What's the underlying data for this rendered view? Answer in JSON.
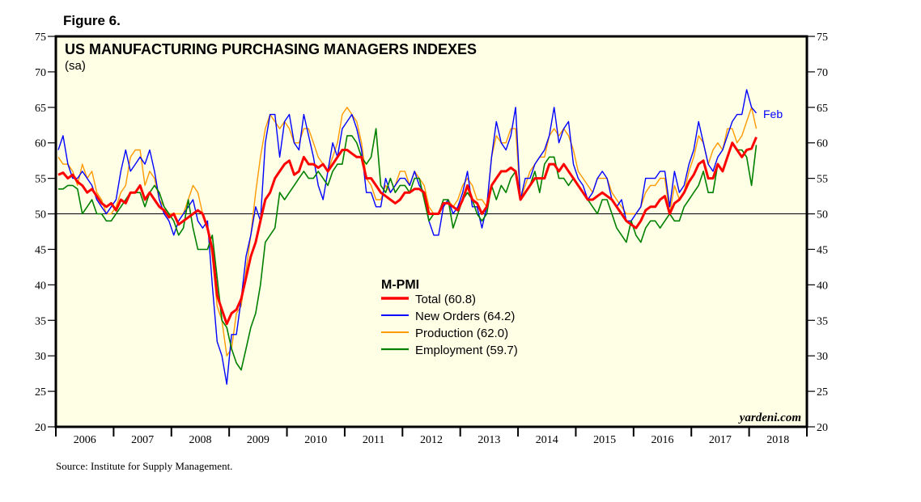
{
  "figure_label": "Figure 6.",
  "source": "Source: Institute for Supply Management.",
  "watermark": "yardeni.com",
  "chart_data": {
    "type": "line",
    "title": "US MANUFACTURING PURCHASING MANAGERS INDEXES",
    "subtitle": "(sa)",
    "legend_title": "M-PMI",
    "legend_placement": "center",
    "end_annotation": "Feb",
    "start": "2006-01",
    "end": "2018-02",
    "frequency": "monthly",
    "ylim": [
      20,
      75
    ],
    "yticks": [
      20,
      25,
      30,
      35,
      40,
      45,
      50,
      55,
      60,
      65,
      70,
      75
    ],
    "reference_line": 50,
    "xticks": [
      "2006",
      "2007",
      "2008",
      "2009",
      "2010",
      "2011",
      "2012",
      "2013",
      "2014",
      "2015",
      "2016",
      "2017",
      "2018"
    ],
    "series": [
      {
        "name": "Total (60.8)",
        "color": "#ff0000",
        "width": 3,
        "values": [
          55.5,
          55.8,
          55,
          55.5,
          54.5,
          54,
          53,
          53.5,
          52.5,
          51.5,
          51,
          51.5,
          50.5,
          52,
          51.5,
          53,
          53,
          54,
          52,
          53,
          52,
          51,
          50.5,
          49.5,
          50,
          48.5,
          49,
          49.5,
          50,
          50.5,
          50,
          48,
          45,
          38.5,
          36.5,
          34.5,
          36,
          36.5,
          38,
          41,
          44,
          46,
          49,
          52,
          53,
          55,
          56,
          57,
          57.5,
          55.5,
          56,
          58,
          57,
          57,
          56.5,
          57,
          56,
          57,
          58,
          59,
          59,
          58.5,
          58,
          58,
          55,
          55,
          54,
          53,
          52.5,
          52,
          51.5,
          52,
          53,
          53,
          53.5,
          53.5,
          53,
          50,
          50,
          50,
          51.5,
          51.5,
          51,
          50.5,
          52,
          54,
          52,
          51.5,
          50,
          51,
          54,
          55,
          56,
          56,
          56.5,
          56,
          52,
          53,
          54,
          55,
          55,
          55,
          57,
          57,
          56,
          57,
          56,
          55,
          54,
          53,
          52,
          52,
          52.5,
          53,
          52.5,
          52,
          51,
          50,
          49,
          48.5,
          48,
          49,
          50.5,
          51,
          51,
          52,
          52.5,
          50,
          51.5,
          52,
          53,
          54.5,
          55.5,
          57,
          57.5,
          55,
          55,
          57,
          56,
          58,
          60,
          59,
          58,
          59,
          59.2,
          60.8
        ]
      },
      {
        "name": "New Orders (64.2)",
        "color": "#0000ff",
        "width": 1.4,
        "values": [
          59,
          61,
          57,
          55,
          55,
          56,
          55,
          54,
          52,
          51,
          50,
          51,
          52,
          56,
          59,
          56,
          57,
          58,
          57,
          59,
          56,
          52,
          50,
          49,
          47,
          49,
          50,
          51,
          52,
          49,
          48,
          49,
          40,
          32,
          30,
          26,
          33,
          33,
          38,
          44,
          47,
          51,
          49,
          60,
          64,
          64,
          58,
          63,
          64,
          60,
          59,
          64,
          61,
          58,
          54,
          52,
          56,
          60,
          58,
          62,
          63,
          64,
          62,
          59,
          53,
          53,
          51,
          51,
          55,
          53,
          54,
          55,
          55,
          54,
          56,
          54,
          53,
          49,
          47,
          47,
          51,
          52,
          50,
          51,
          53,
          56,
          51,
          51,
          48,
          51,
          58,
          63,
          60,
          59,
          61,
          65,
          52,
          55,
          55,
          57,
          58,
          59,
          61,
          65,
          60,
          62,
          63,
          57,
          55,
          54,
          52,
          53,
          55,
          56,
          55,
          52,
          51,
          52,
          49,
          49,
          50,
          51,
          55,
          55,
          55,
          56,
          56,
          51,
          56,
          53,
          54,
          57,
          59,
          63,
          60,
          57,
          56,
          58,
          59,
          61,
          63,
          64,
          64,
          67.5,
          65,
          64.2
        ]
      },
      {
        "name": "Production (62.0)",
        "color": "#ff9900",
        "width": 1.4,
        "values": [
          58,
          57,
          57,
          56,
          54,
          57,
          55,
          56,
          53,
          52,
          50,
          50,
          51,
          53,
          54,
          58,
          59,
          59,
          54,
          56,
          55,
          52,
          51,
          50,
          50,
          50,
          50,
          52,
          54,
          53,
          50,
          48,
          44,
          37,
          35,
          30,
          31,
          36,
          37,
          42,
          47,
          53,
          58,
          62,
          64,
          63,
          62,
          63,
          62,
          60,
          60,
          62,
          62,
          60,
          58,
          57,
          56,
          58,
          60,
          64,
          65,
          64,
          63,
          60,
          55,
          54,
          52,
          52,
          54,
          53,
          54,
          56,
          56,
          54,
          56,
          55,
          54,
          51,
          50,
          50,
          51,
          52,
          51,
          52,
          54,
          55,
          54,
          52,
          52,
          51,
          58,
          61,
          60,
          60,
          62,
          62,
          52,
          54,
          56,
          57,
          58,
          58,
          61,
          62,
          61,
          62,
          61,
          59,
          56,
          55,
          54,
          53,
          55,
          55,
          55,
          53,
          52,
          51,
          50,
          50,
          50,
          51,
          53,
          54,
          54,
          55,
          55,
          50,
          54,
          52,
          53,
          56,
          58,
          61,
          60,
          57,
          59,
          60,
          59,
          62,
          62,
          60,
          61,
          63,
          65,
          62.0
        ]
      },
      {
        "name": "Employment (59.7)",
        "color": "#008000",
        "width": 1.6,
        "values": [
          53.5,
          53.5,
          54,
          54,
          53.5,
          50,
          51,
          52,
          50,
          50,
          49,
          49,
          50,
          51,
          52,
          53,
          53,
          53,
          51,
          53,
          54,
          53,
          51,
          50,
          49,
          47,
          48,
          52,
          48,
          45,
          45,
          45,
          47,
          41,
          35,
          34,
          31,
          29,
          28,
          31,
          34,
          36,
          40,
          46,
          47,
          48,
          53,
          52,
          53,
          54,
          55,
          56,
          55,
          55,
          56,
          55,
          54,
          56,
          57,
          57,
          61,
          61,
          60,
          58,
          57,
          58,
          62,
          54,
          53,
          55,
          53,
          54,
          54,
          53,
          55,
          55,
          52,
          49,
          50,
          50,
          52,
          52,
          48,
          50,
          52,
          53,
          52,
          50,
          49,
          50,
          54,
          52,
          54,
          53,
          55,
          56,
          52,
          53,
          54,
          56,
          53,
          57,
          58,
          58,
          55,
          55,
          54,
          55,
          54,
          53,
          52,
          51,
          50,
          52,
          52,
          50,
          48,
          47,
          46,
          49,
          47,
          46,
          48,
          49,
          49,
          48,
          49,
          50,
          49,
          49,
          51,
          52,
          53,
          54,
          56,
          53,
          53,
          57,
          56,
          58,
          60,
          59,
          59,
          58,
          54,
          59.7
        ]
      }
    ]
  }
}
